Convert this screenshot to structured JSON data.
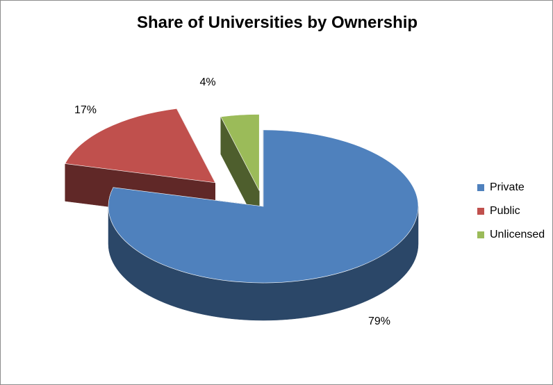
{
  "chart_data": {
    "type": "pie",
    "style": "3d-exploded",
    "title": "Share of Universities by Ownership",
    "categories": [
      "Private",
      "Public",
      "Unlicensed"
    ],
    "values": [
      79,
      17,
      4
    ],
    "data_labels": [
      "79%",
      "17%",
      "4%"
    ],
    "colors": [
      "#4f81bd",
      "#c0504d",
      "#9bbb59"
    ],
    "legend_position": "right",
    "start_angle_deg": 0,
    "direction": "clockwise"
  }
}
